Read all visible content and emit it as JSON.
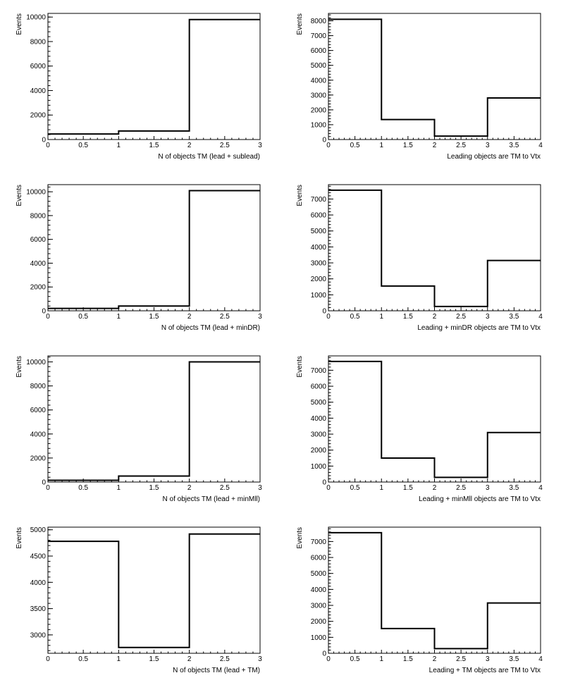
{
  "chart_data": [
    {
      "type": "histogram",
      "xlabel": "N of objects TM (lead + sublead)",
      "ylabel": "Events",
      "xlim": [
        0,
        3
      ],
      "ylim": [
        0,
        10300
      ],
      "bin_edges": [
        0,
        1,
        2,
        3
      ],
      "values": [
        450,
        700,
        9800
      ],
      "xticks": [
        "0",
        "0.5",
        "1",
        "1.5",
        "2",
        "2.5",
        "3"
      ],
      "yticks": [
        "0",
        "2000",
        "4000",
        "6000",
        "8000",
        "10000"
      ],
      "grid": false
    },
    {
      "type": "histogram",
      "xlabel": "Leading objects are TM to Vtx",
      "ylabel": "Events",
      "xlim": [
        0,
        4
      ],
      "ylim": [
        0,
        8500
      ],
      "bin_edges": [
        0,
        1,
        2,
        3,
        4
      ],
      "values": [
        8100,
        1350,
        230,
        2800
      ],
      "xticks": [
        "0",
        "0.5",
        "1",
        "1.5",
        "2",
        "2.5",
        "3",
        "3.5",
        "4"
      ],
      "yticks": [
        "0",
        "1000",
        "2000",
        "3000",
        "4000",
        "5000",
        "6000",
        "7000",
        "8000"
      ],
      "grid": false
    },
    {
      "type": "histogram",
      "xlabel": "N of objects TM (lead + minDR)",
      "ylabel": "Events",
      "xlim": [
        0,
        3
      ],
      "ylim": [
        0,
        10600
      ],
      "bin_edges": [
        0,
        1,
        2,
        3
      ],
      "values": [
        200,
        400,
        10100
      ],
      "xticks": [
        "0",
        "0.5",
        "1",
        "1.5",
        "2",
        "2.5",
        "3"
      ],
      "yticks": [
        "0",
        "2000",
        "4000",
        "6000",
        "8000",
        "10000"
      ],
      "grid": false
    },
    {
      "type": "histogram",
      "xlabel": "Leading + minDR objects are TM to Vtx",
      "ylabel": "Events",
      "xlim": [
        0,
        4
      ],
      "ylim": [
        0,
        7900
      ],
      "bin_edges": [
        0,
        1,
        2,
        3,
        4
      ],
      "values": [
        7550,
        1550,
        270,
        3150
      ],
      "xticks": [
        "0",
        "0.5",
        "1",
        "1.5",
        "2",
        "2.5",
        "3",
        "3.5",
        "4"
      ],
      "yticks": [
        "0",
        "1000",
        "2000",
        "3000",
        "4000",
        "5000",
        "6000",
        "7000"
      ],
      "grid": false
    },
    {
      "type": "histogram",
      "xlabel": "N of objects TM (lead + minMll)",
      "ylabel": "Events",
      "xlim": [
        0,
        3
      ],
      "ylim": [
        0,
        10500
      ],
      "bin_edges": [
        0,
        1,
        2,
        3
      ],
      "values": [
        150,
        500,
        10000
      ],
      "xticks": [
        "0",
        "0.5",
        "1",
        "1.5",
        "2",
        "2.5",
        "3"
      ],
      "yticks": [
        "0",
        "2000",
        "4000",
        "6000",
        "8000",
        "10000"
      ],
      "grid": false
    },
    {
      "type": "histogram",
      "xlabel": "Leading + minMll objects are TM to Vtx",
      "ylabel": "Events",
      "xlim": [
        0,
        4
      ],
      "ylim": [
        0,
        7900
      ],
      "bin_edges": [
        0,
        1,
        2,
        3,
        4
      ],
      "values": [
        7550,
        1500,
        290,
        3100
      ],
      "xticks": [
        "0",
        "0.5",
        "1",
        "1.5",
        "2",
        "2.5",
        "3",
        "3.5",
        "4"
      ],
      "yticks": [
        "0",
        "1000",
        "2000",
        "3000",
        "4000",
        "5000",
        "6000",
        "7000"
      ],
      "grid": false
    },
    {
      "type": "histogram",
      "xlabel": "N of objects TM (lead + TM)",
      "ylabel": "Events",
      "xlim": [
        0,
        3
      ],
      "ylim": [
        2650,
        5050
      ],
      "bin_edges": [
        0,
        1,
        2,
        3
      ],
      "values": [
        4780,
        2760,
        4920
      ],
      "xticks": [
        "0",
        "0.5",
        "1",
        "1.5",
        "2",
        "2.5",
        "3"
      ],
      "yticks": [
        "3000",
        "3500",
        "4000",
        "4500",
        "5000"
      ],
      "grid": false
    },
    {
      "type": "histogram",
      "xlabel": "Leading + TM objects are TM to Vtx",
      "ylabel": "Events",
      "xlim": [
        0,
        4
      ],
      "ylim": [
        0,
        7900
      ],
      "bin_edges": [
        0,
        1,
        2,
        3,
        4
      ],
      "values": [
        7550,
        1550,
        290,
        3150
      ],
      "xticks": [
        "0",
        "0.5",
        "1",
        "1.5",
        "2",
        "2.5",
        "3",
        "3.5",
        "4"
      ],
      "yticks": [
        "0",
        "1000",
        "2000",
        "3000",
        "4000",
        "5000",
        "6000",
        "7000"
      ],
      "grid": false
    }
  ]
}
